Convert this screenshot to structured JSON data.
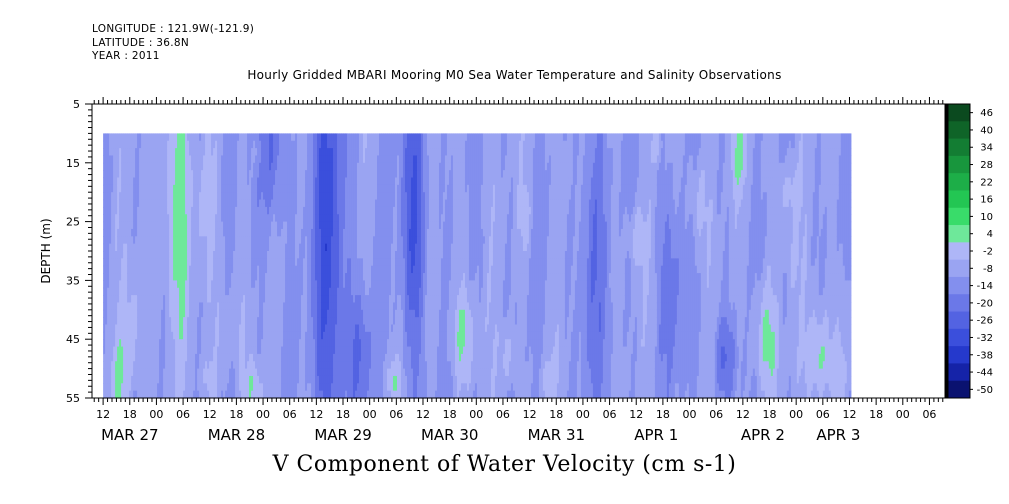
{
  "header": {
    "longitude": "LONGITUDE : 121.9W(-121.9)",
    "latitude": "LATITUDE : 36.8N",
    "year": "YEAR : 2011"
  },
  "title": "Hourly Gridded MBARI Mooring M0 Sea Water Temperature and Salinity Observations",
  "footer": "V Component of Water Velocity (cm s-1)",
  "chart_data": {
    "type": "heatmap",
    "ylabel": "DEPTH (m)",
    "ylim": [
      55,
      5
    ],
    "y_ticks": [
      5,
      15,
      25,
      35,
      45,
      55
    ],
    "data_depth_range": [
      10,
      55
    ],
    "time_range_hours": [
      12,
      180
    ],
    "x_tick_labels": [
      "12",
      "18",
      "00",
      "06",
      "12",
      "18",
      "00",
      "06",
      "12",
      "18",
      "00",
      "06",
      "12",
      "18",
      "00",
      "06",
      "12",
      "18",
      "00",
      "06",
      "12",
      "18",
      "00",
      "06",
      "12",
      "18",
      "00",
      "06",
      "12",
      "18",
      "00",
      "06"
    ],
    "x_tick_hours": [
      12,
      18,
      24,
      30,
      36,
      42,
      48,
      54,
      60,
      66,
      72,
      78,
      84,
      90,
      96,
      102,
      108,
      114,
      120,
      126,
      132,
      138,
      144,
      150,
      156,
      162,
      168,
      174,
      180,
      186,
      192,
      198
    ],
    "date_labels": [
      {
        "label": "MAR 27",
        "hour": 12
      },
      {
        "label": "MAR 28",
        "hour": 36
      },
      {
        "label": "MAR 29",
        "hour": 60
      },
      {
        "label": "MAR 30",
        "hour": 84
      },
      {
        "label": "MAR 31",
        "hour": 108
      },
      {
        "label": "APR  1",
        "hour": 132
      },
      {
        "label": "APR  2",
        "hour": 156
      },
      {
        "label": "APR  3",
        "hour": 173
      }
    ],
    "colorbar": {
      "labels": [
        "46",
        "40",
        "34",
        "28",
        "22",
        "16",
        "10",
        "4",
        "-2",
        "-8",
        "-14",
        "-20",
        "-26",
        "-32",
        "-38",
        "-44",
        "-50"
      ],
      "min": -50,
      "max": 50
    },
    "blobs": [
      {
        "t": 28.5,
        "d": 20,
        "st": 2.2,
        "sd": 18,
        "v": 9
      },
      {
        "t": 19,
        "d": 44,
        "st": 1.8,
        "sd": 8,
        "v": 6
      },
      {
        "t": 15.5,
        "d": 52,
        "st": 1.5,
        "sd": 5,
        "v": 5
      },
      {
        "t": 35,
        "d": 22,
        "st": 1.5,
        "sd": 6,
        "v": 4
      },
      {
        "t": 40,
        "d": 42,
        "st": 2.5,
        "sd": 6,
        "v": 4
      },
      {
        "t": 46,
        "d": 53,
        "st": 1.5,
        "sd": 3,
        "v": 6
      },
      {
        "t": 36,
        "d": 52,
        "st": 2,
        "sd": 3,
        "v": 4
      },
      {
        "t": 47,
        "d": 13,
        "st": 1,
        "sd": 3,
        "v": 4
      },
      {
        "t": 77,
        "d": 52,
        "st": 1.5,
        "sd": 3,
        "v": 6
      },
      {
        "t": 93,
        "d": 44,
        "st": 2.2,
        "sd": 6,
        "v": 7
      },
      {
        "t": 103,
        "d": 48,
        "st": 1.2,
        "sd": 4,
        "v": 6
      },
      {
        "t": 107,
        "d": 24,
        "st": 1,
        "sd": 4,
        "v": 5
      },
      {
        "t": 112,
        "d": 52,
        "st": 1.3,
        "sd": 2.5,
        "v": 5
      },
      {
        "t": 116,
        "d": 16,
        "st": 1.2,
        "sd": 4,
        "v": 4
      },
      {
        "t": 132,
        "d": 28,
        "st": 1.2,
        "sd": 4,
        "v": 6
      },
      {
        "t": 136.5,
        "d": 12,
        "st": 0.8,
        "sd": 2,
        "v": 5
      },
      {
        "t": 146,
        "d": 22,
        "st": 1.5,
        "sd": 6,
        "v": 6
      },
      {
        "t": 155,
        "d": 14,
        "st": 1.5,
        "sd": 4,
        "v": 6
      },
      {
        "t": 166,
        "d": 20,
        "st": 1.8,
        "sd": 4,
        "v": 6
      },
      {
        "t": 161,
        "d": 45,
        "st": 2,
        "sd": 7,
        "v": 8
      },
      {
        "t": 167,
        "d": 32,
        "st": 1,
        "sd": 3,
        "v": 4
      },
      {
        "t": 173,
        "d": 48,
        "st": 1.8,
        "sd": 6,
        "v": 10
      },
      {
        "t": 178,
        "d": 50,
        "st": 1.2,
        "sd": 5,
        "v": 6
      },
      {
        "t": 179,
        "d": 38,
        "st": 1,
        "sd": 4,
        "v": 4
      },
      {
        "t": 184,
        "d": 22,
        "st": 1.2,
        "sd": 5,
        "v": 5
      },
      {
        "t": 187.5,
        "d": 45,
        "st": 0.6,
        "sd": 10,
        "v": 9
      },
      {
        "t": 63,
        "d": 30,
        "st": 2.5,
        "sd": 28,
        "v": -14
      },
      {
        "t": 50,
        "d": 12,
        "st": 2,
        "sd": 10,
        "v": -10
      },
      {
        "t": 82,
        "d": 25,
        "st": 2,
        "sd": 18,
        "v": -12
      },
      {
        "t": 70,
        "d": 48,
        "st": 2,
        "sd": 8,
        "v": -8
      },
      {
        "t": 122,
        "d": 30,
        "st": 2,
        "sd": 20,
        "v": -8
      },
      {
        "t": 140,
        "d": 36,
        "st": 2,
        "sd": 12,
        "v": -6
      },
      {
        "t": 152,
        "d": 48,
        "st": 2,
        "sd": 5,
        "v": -8
      }
    ]
  }
}
